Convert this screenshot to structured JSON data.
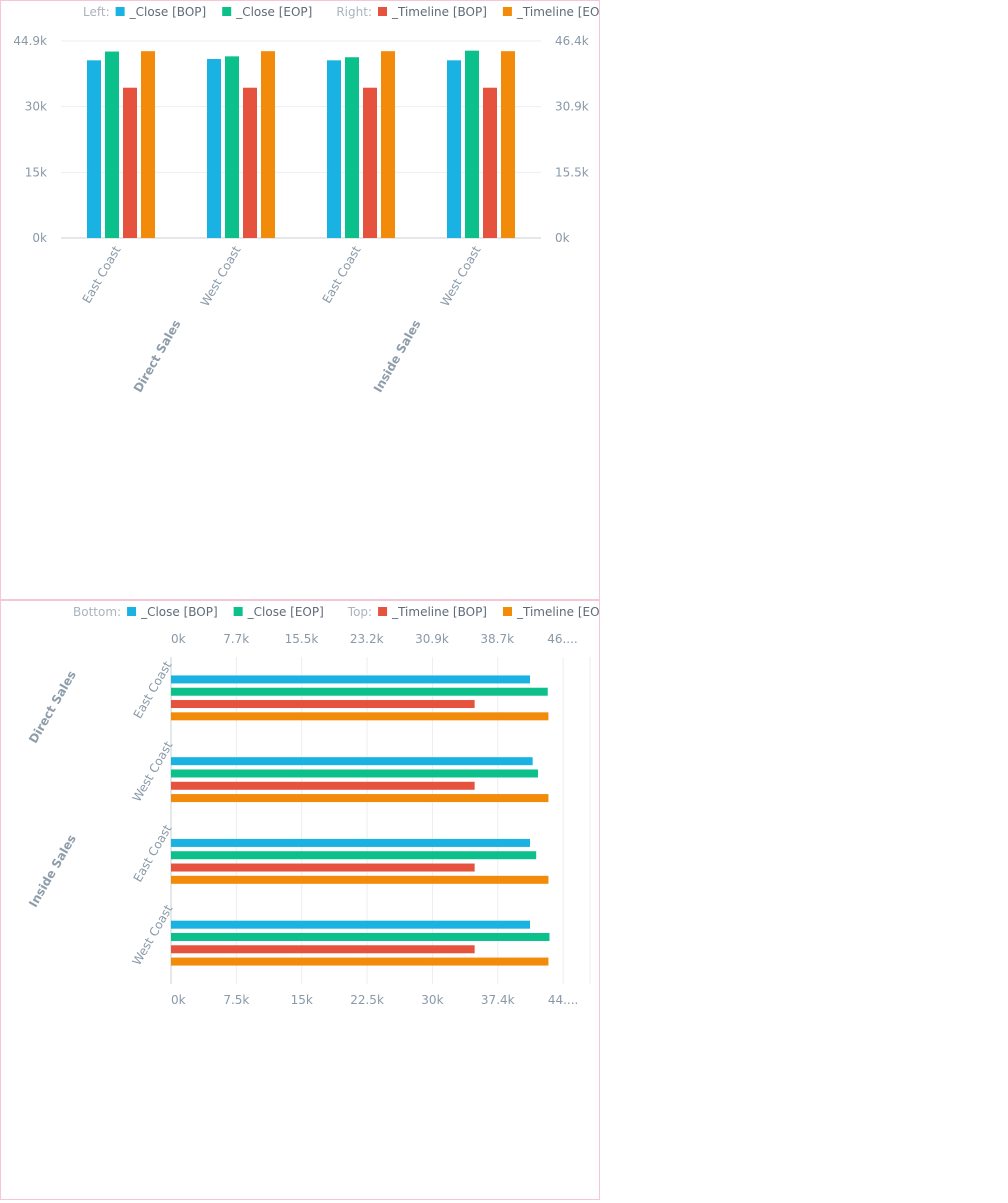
{
  "colors": {
    "close_bop": "#1ab2e3",
    "close_eop": "#0cc08b",
    "timeline_bop": "#e5533f",
    "timeline_eop": "#f38b0a",
    "axis_text": "#8a99a8",
    "group_text": "#8f9dab",
    "legend_text": "#5f6b78",
    "legend_prefix": "#a9b4be",
    "grid": "#ebeef1",
    "border": "#f4c6d6"
  },
  "chart_data": [
    {
      "type": "bar",
      "orientation": "vertical",
      "legend": {
        "placement": "top",
        "groups": [
          {
            "prefix": "Left:",
            "items": [
              {
                "name": "_Close [BOP]",
                "color": "#1ab2e3"
              },
              {
                "name": "_Close [EOP]",
                "color": "#0cc08b"
              }
            ]
          },
          {
            "prefix": "Right:",
            "items": [
              {
                "name": "_Timeline [BOP]",
                "color": "#e5533f"
              },
              {
                "name": "_Timeline [EOP]",
                "color": "#f38b0a"
              }
            ]
          }
        ]
      },
      "groups": [
        {
          "name": "Direct Sales",
          "categories": [
            "East Coast",
            "West Coast"
          ]
        },
        {
          "name": "Inside Sales",
          "categories": [
            "East Coast",
            "West Coast"
          ]
        }
      ],
      "left_axis": {
        "ticks": [
          "0k",
          "15k",
          "30k",
          "44.9k"
        ],
        "ylim": [
          0,
          44900
        ]
      },
      "right_axis": {
        "ticks": [
          "0k",
          "15.5k",
          "30.9k",
          "46.4k"
        ],
        "ylim": [
          0,
          46400
        ]
      },
      "series": [
        {
          "name": "_Close [BOP]",
          "axis": "left",
          "values": [
            40500,
            40800,
            40500,
            40500
          ]
        },
        {
          "name": "_Close [EOP]",
          "axis": "left",
          "values": [
            42500,
            41400,
            41200,
            42700
          ]
        },
        {
          "name": "_Timeline [BOP]",
          "axis": "right",
          "values": [
            35400,
            35400,
            35400,
            35400
          ]
        },
        {
          "name": "_Timeline [EOP]",
          "axis": "right",
          "values": [
            44000,
            44000,
            44000,
            44000
          ]
        }
      ],
      "grid": true
    },
    {
      "type": "bar",
      "orientation": "horizontal",
      "legend": {
        "placement": "top",
        "groups": [
          {
            "prefix": "Bottom:",
            "items": [
              {
                "name": "_Close [BOP]",
                "color": "#1ab2e3"
              },
              {
                "name": "_Close [EOP]",
                "color": "#0cc08b"
              }
            ]
          },
          {
            "prefix": "Top:",
            "items": [
              {
                "name": "_Timeline [BOP]",
                "color": "#e5533f"
              },
              {
                "name": "_Timeline [EOP]",
                "color": "#f38b0a"
              }
            ]
          }
        ]
      },
      "groups": [
        {
          "name": "Direct Sales",
          "categories": [
            "East Coast"
          ]
        },
        {
          "name": "Inside Sales",
          "categories": [
            "West Coast",
            "East Coast",
            "West Coast"
          ]
        }
      ],
      "bottom_axis": {
        "ticks": [
          "0k",
          "7.5k",
          "15k",
          "22.5k",
          "30k",
          "37.4k",
          "44...."
        ],
        "xlim": [
          0,
          44900
        ]
      },
      "top_axis": {
        "ticks": [
          "0k",
          "7.7k",
          "15.5k",
          "23.2k",
          "30.9k",
          "38.7k",
          "46...."
        ],
        "xlim": [
          0,
          46400
        ]
      },
      "series": [
        {
          "name": "_Close [BOP]",
          "axis": "bottom",
          "values": [
            40500,
            40800,
            40500,
            40500
          ]
        },
        {
          "name": "_Close [EOP]",
          "axis": "bottom",
          "values": [
            42500,
            41400,
            41200,
            42700
          ]
        },
        {
          "name": "_Timeline [BOP]",
          "axis": "top",
          "values": [
            35400,
            35400,
            35400,
            35400
          ]
        },
        {
          "name": "_Timeline [EOP]",
          "axis": "top",
          "values": [
            44000,
            44000,
            44000,
            44000
          ]
        }
      ],
      "grid": true
    }
  ]
}
